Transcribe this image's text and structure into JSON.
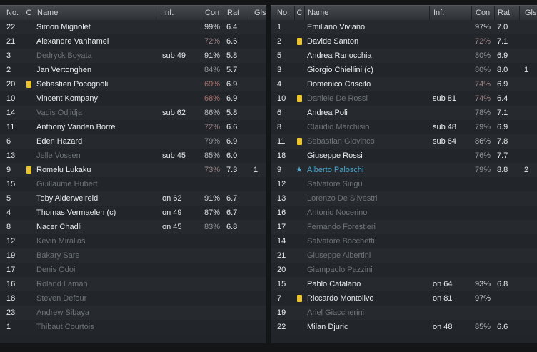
{
  "columns": [
    {
      "key": "no",
      "label": "No."
    },
    {
      "key": "c",
      "label": "C"
    },
    {
      "key": "name",
      "label": "Name"
    },
    {
      "key": "inf",
      "label": "Inf."
    },
    {
      "key": "con",
      "label": "Con"
    },
    {
      "key": "rat",
      "label": "Rat"
    },
    {
      "key": "gls",
      "label": "Gls"
    }
  ],
  "palette": {
    "yellow_card": "#eac32e",
    "star_blue": "#5aa5c8",
    "highlight_name": "#4aa4cd",
    "active_text": "#e9ebec",
    "inactive_text": "#6d7478",
    "header_text": "#ccd1d5",
    "con_high": "#d8dadc",
    "con_good": "#b6babd",
    "con_mid": "#8f9598",
    "con_warn": "#9c8385",
    "con_low": "#aa6f6b"
  },
  "teams": [
    {
      "side": "left",
      "players": [
        {
          "no": "22",
          "card": false,
          "star": false,
          "name": "Simon Mignolet",
          "status": "active",
          "inf": "",
          "con": "99%",
          "con_tone": "high",
          "rat": "6.4",
          "gls": ""
        },
        {
          "no": "21",
          "card": false,
          "star": false,
          "name": "Alexandre Vanhamel",
          "status": "active",
          "inf": "",
          "con": "72%",
          "con_tone": "warn",
          "rat": "6.6",
          "gls": ""
        },
        {
          "no": "3",
          "card": false,
          "star": false,
          "name": "Dedryck Boyata",
          "status": "subbed",
          "inf": "sub 49",
          "con": "91%",
          "con_tone": "high",
          "rat": "5.8",
          "gls": ""
        },
        {
          "no": "2",
          "card": false,
          "star": false,
          "name": "Jan Vertonghen",
          "status": "active",
          "inf": "",
          "con": "84%",
          "con_tone": "mid",
          "rat": "5.7",
          "gls": ""
        },
        {
          "no": "20",
          "card": true,
          "star": false,
          "name": "Sébastien Pocognoli",
          "status": "active",
          "inf": "",
          "con": "69%",
          "con_tone": "low",
          "rat": "6.9",
          "gls": ""
        },
        {
          "no": "10",
          "card": false,
          "star": false,
          "name": "Vincent Kompany",
          "status": "active",
          "inf": "",
          "con": "68%",
          "con_tone": "low",
          "rat": "6.9",
          "gls": ""
        },
        {
          "no": "14",
          "card": false,
          "star": false,
          "name": "Vadis Odjidja",
          "status": "subbed",
          "inf": "sub 62",
          "con": "86%",
          "con_tone": "good",
          "rat": "5.8",
          "gls": ""
        },
        {
          "no": "11",
          "card": false,
          "star": false,
          "name": "Anthony Vanden Borre",
          "status": "active",
          "inf": "",
          "con": "72%",
          "con_tone": "warn",
          "rat": "6.6",
          "gls": ""
        },
        {
          "no": "6",
          "card": false,
          "star": false,
          "name": "Eden Hazard",
          "status": "active",
          "inf": "",
          "con": "79%",
          "con_tone": "mid",
          "rat": "6.9",
          "gls": ""
        },
        {
          "no": "13",
          "card": false,
          "star": false,
          "name": "Jelle Vossen",
          "status": "subbed",
          "inf": "sub 45",
          "con": "85%",
          "con_tone": "good",
          "rat": "6.0",
          "gls": ""
        },
        {
          "no": "9",
          "card": true,
          "star": false,
          "name": "Romelu Lukaku",
          "status": "active",
          "inf": "",
          "con": "73%",
          "con_tone": "warn",
          "rat": "7.3",
          "gls": "1"
        },
        {
          "no": "15",
          "card": false,
          "star": false,
          "name": "Guillaume Hubert",
          "status": "unused",
          "inf": "",
          "con": "",
          "con_tone": "",
          "rat": "",
          "gls": ""
        },
        {
          "no": "5",
          "card": false,
          "star": false,
          "name": "Toby Alderweireld",
          "status": "active",
          "inf": "on 62",
          "con": "91%",
          "con_tone": "high",
          "rat": "6.7",
          "gls": ""
        },
        {
          "no": "4",
          "card": false,
          "star": false,
          "name": "Thomas Vermaelen (c)",
          "status": "active",
          "inf": "on 49",
          "con": "87%",
          "con_tone": "high",
          "rat": "6.7",
          "gls": ""
        },
        {
          "no": "8",
          "card": false,
          "star": false,
          "name": "Nacer Chadli",
          "status": "active",
          "inf": "on 45",
          "con": "83%",
          "con_tone": "mid",
          "rat": "6.8",
          "gls": ""
        },
        {
          "no": "12",
          "card": false,
          "star": false,
          "name": "Kevin Mirallas",
          "status": "unused",
          "inf": "",
          "con": "",
          "con_tone": "",
          "rat": "",
          "gls": ""
        },
        {
          "no": "19",
          "card": false,
          "star": false,
          "name": "Bakary Sare",
          "status": "unused",
          "inf": "",
          "con": "",
          "con_tone": "",
          "rat": "",
          "gls": ""
        },
        {
          "no": "17",
          "card": false,
          "star": false,
          "name": "Denis Odoi",
          "status": "unused",
          "inf": "",
          "con": "",
          "con_tone": "",
          "rat": "",
          "gls": ""
        },
        {
          "no": "16",
          "card": false,
          "star": false,
          "name": "Roland Lamah",
          "status": "unused",
          "inf": "",
          "con": "",
          "con_tone": "",
          "rat": "",
          "gls": ""
        },
        {
          "no": "18",
          "card": false,
          "star": false,
          "name": "Steven Defour",
          "status": "unused",
          "inf": "",
          "con": "",
          "con_tone": "",
          "rat": "",
          "gls": ""
        },
        {
          "no": "23",
          "card": false,
          "star": false,
          "name": "Andrew Sibaya",
          "status": "unused",
          "inf": "",
          "con": "",
          "con_tone": "",
          "rat": "",
          "gls": ""
        },
        {
          "no": "1",
          "card": false,
          "star": false,
          "name": "Thibaut Courtois",
          "status": "unused",
          "inf": "",
          "con": "",
          "con_tone": "",
          "rat": "",
          "gls": ""
        }
      ]
    },
    {
      "side": "right",
      "players": [
        {
          "no": "1",
          "card": false,
          "star": false,
          "name": "Emiliano Viviano",
          "status": "active",
          "inf": "",
          "con": "97%",
          "con_tone": "high",
          "rat": "7.0",
          "gls": ""
        },
        {
          "no": "2",
          "card": true,
          "star": false,
          "name": "Davide Santon",
          "status": "active",
          "inf": "",
          "con": "72%",
          "con_tone": "warn",
          "rat": "7.1",
          "gls": ""
        },
        {
          "no": "5",
          "card": false,
          "star": false,
          "name": "Andrea Ranocchia",
          "status": "active",
          "inf": "",
          "con": "80%",
          "con_tone": "mid",
          "rat": "6.9",
          "gls": ""
        },
        {
          "no": "3",
          "card": false,
          "star": false,
          "name": "Giorgio Chiellini (c)",
          "status": "active",
          "inf": "",
          "con": "80%",
          "con_tone": "mid",
          "rat": "8.0",
          "gls": "1"
        },
        {
          "no": "4",
          "card": false,
          "star": false,
          "name": "Domenico Criscito",
          "status": "active",
          "inf": "",
          "con": "74%",
          "con_tone": "warn",
          "rat": "6.9",
          "gls": ""
        },
        {
          "no": "10",
          "card": true,
          "star": false,
          "name": "Daniele De Rossi",
          "status": "subbed",
          "inf": "sub 81",
          "con": "74%",
          "con_tone": "warn",
          "rat": "6.4",
          "gls": ""
        },
        {
          "no": "6",
          "card": false,
          "star": false,
          "name": "Andrea Poli",
          "status": "active",
          "inf": "",
          "con": "78%",
          "con_tone": "mid",
          "rat": "7.1",
          "gls": ""
        },
        {
          "no": "8",
          "card": false,
          "star": false,
          "name": "Claudio Marchisio",
          "status": "subbed",
          "inf": "sub 48",
          "con": "79%",
          "con_tone": "mid",
          "rat": "6.9",
          "gls": ""
        },
        {
          "no": "11",
          "card": true,
          "star": false,
          "name": "Sebastian Giovinco",
          "status": "subbed",
          "inf": "sub 64",
          "con": "86%",
          "con_tone": "good",
          "rat": "7.8",
          "gls": ""
        },
        {
          "no": "18",
          "card": false,
          "star": false,
          "name": "Giuseppe Rossi",
          "status": "active",
          "inf": "",
          "con": "76%",
          "con_tone": "mid",
          "rat": "7.7",
          "gls": ""
        },
        {
          "no": "9",
          "card": false,
          "star": true,
          "name": "Alberto Paloschi",
          "status": "motm",
          "inf": "",
          "con": "79%",
          "con_tone": "mid",
          "rat": "8.8",
          "gls": "2"
        },
        {
          "no": "12",
          "card": false,
          "star": false,
          "name": "Salvatore Sirigu",
          "status": "unused",
          "inf": "",
          "con": "",
          "con_tone": "",
          "rat": "",
          "gls": ""
        },
        {
          "no": "13",
          "card": false,
          "star": false,
          "name": "Lorenzo De Silvestri",
          "status": "unused",
          "inf": "",
          "con": "",
          "con_tone": "",
          "rat": "",
          "gls": ""
        },
        {
          "no": "16",
          "card": false,
          "star": false,
          "name": "Antonio Nocerino",
          "status": "unused",
          "inf": "",
          "con": "",
          "con_tone": "",
          "rat": "",
          "gls": ""
        },
        {
          "no": "17",
          "card": false,
          "star": false,
          "name": "Fernando Forestieri",
          "status": "unused",
          "inf": "",
          "con": "",
          "con_tone": "",
          "rat": "",
          "gls": ""
        },
        {
          "no": "14",
          "card": false,
          "star": false,
          "name": "Salvatore Bocchetti",
          "status": "unused",
          "inf": "",
          "con": "",
          "con_tone": "",
          "rat": "",
          "gls": ""
        },
        {
          "no": "21",
          "card": false,
          "star": false,
          "name": "Giuseppe Albertini",
          "status": "unused",
          "inf": "",
          "con": "",
          "con_tone": "",
          "rat": "",
          "gls": ""
        },
        {
          "no": "20",
          "card": false,
          "star": false,
          "name": "Giampaolo Pazzini",
          "status": "unused",
          "inf": "",
          "con": "",
          "con_tone": "",
          "rat": "",
          "gls": ""
        },
        {
          "no": "15",
          "card": false,
          "star": false,
          "name": "Pablo Catalano",
          "status": "active",
          "inf": "on 64",
          "con": "93%",
          "con_tone": "high",
          "rat": "6.8",
          "gls": ""
        },
        {
          "no": "7",
          "card": true,
          "star": false,
          "name": "Riccardo Montolivo",
          "status": "active",
          "inf": "on 81",
          "con": "97%",
          "con_tone": "high",
          "rat": "",
          "gls": ""
        },
        {
          "no": "19",
          "card": false,
          "star": false,
          "name": "Ariel Giaccherini",
          "status": "unused",
          "inf": "",
          "con": "",
          "con_tone": "",
          "rat": "",
          "gls": ""
        },
        {
          "no": "22",
          "card": false,
          "star": false,
          "name": "Milan Djuric",
          "status": "active",
          "inf": "on 48",
          "con": "85%",
          "con_tone": "good",
          "rat": "6.6",
          "gls": ""
        }
      ]
    }
  ]
}
